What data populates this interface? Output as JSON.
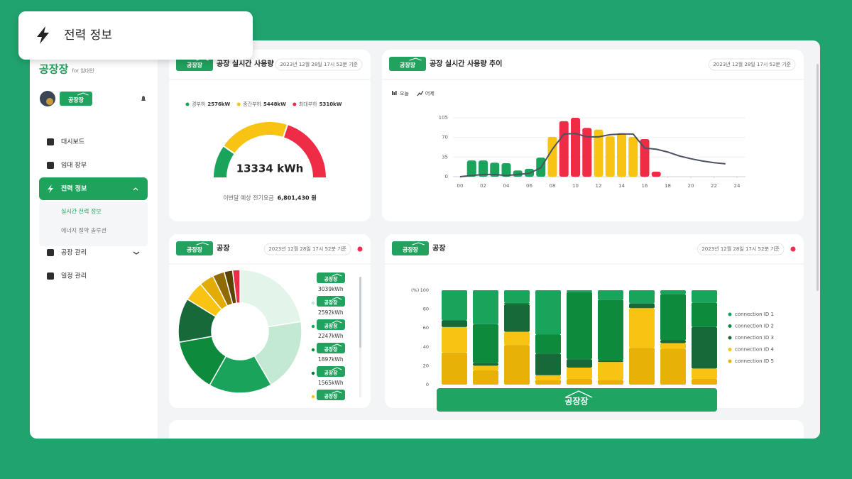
{
  "tooltip": {
    "title": "전력 정보"
  },
  "sidebar": {
    "logo": "공장장",
    "logo_sub": "for 임대인",
    "profile_badge": "공장장",
    "menu": [
      {
        "label": "대시보드"
      },
      {
        "label": "임대 장부"
      },
      {
        "label": "전력 정보",
        "active": true,
        "expanded": true,
        "children": [
          {
            "label": "실시간 전력 정보",
            "active": true
          },
          {
            "label": "에너지 절약 솔루션"
          }
        ]
      },
      {
        "label": "공장 관리",
        "expanded": false
      },
      {
        "label": "일정 관리"
      }
    ]
  },
  "chart_data": [
    {
      "type": "gauge",
      "badge": "공장장",
      "title": "공장 실시간 사용량",
      "timestamp": "2023년 12월 28일 17시 52분 기준",
      "categories": [
        "경부하",
        "중간부하",
        "최대부하"
      ],
      "values": [
        2576,
        5448,
        5310
      ],
      "value_labels": [
        "2576kW",
        "5448kW",
        "5310kW"
      ],
      "colors": [
        "#1aa35a",
        "#f7c414",
        "#ef2c45"
      ],
      "center_label": "13334 kWh",
      "footer_label": "이번달 예상 전기요금",
      "footer_value": "6,801,430 원"
    },
    {
      "type": "bar-line",
      "badge": "공장장",
      "title": "공장 실시간 사용량 추이",
      "timestamp": "2023년 12월 28일 17시 52분 기준",
      "series": [
        {
          "name": "오늘",
          "type": "bar",
          "x": [
            1,
            2,
            3,
            4,
            5,
            6,
            7,
            8,
            9,
            10,
            11,
            12,
            13,
            14,
            15,
            16,
            17
          ],
          "values": [
            29,
            29,
            25,
            24,
            11,
            14,
            34,
            71,
            99,
            105,
            87,
            84,
            72,
            78,
            71,
            67,
            9
          ],
          "colors": [
            "#1aa35a",
            "#1aa35a",
            "#1aa35a",
            "#1aa35a",
            "#1aa35a",
            "#1aa35a",
            "#1aa35a",
            "#f7c414",
            "#ef2c45",
            "#ef2c45",
            "#ef2c45",
            "#f7c414",
            "#f7c414",
            "#f7c414",
            "#f7c414",
            "#ef2c45",
            "#ef2c45"
          ]
        },
        {
          "name": "어제",
          "type": "line",
          "color": "#4b5260",
          "x": [
            0,
            1,
            2,
            3,
            4,
            5,
            6,
            7,
            8,
            9,
            10,
            11,
            12,
            13,
            14,
            15,
            16,
            17,
            18,
            19,
            20,
            21,
            22,
            23
          ],
          "values": [
            0,
            2,
            4,
            4,
            2,
            4,
            6,
            16,
            49,
            76,
            77,
            71,
            71,
            75,
            76,
            76,
            51,
            49,
            44,
            37,
            32,
            28,
            25,
            23
          ]
        }
      ],
      "xlim": [
        0,
        24
      ],
      "xticks": [
        {
          "value": 0,
          "label": "00"
        },
        {
          "value": 2,
          "label": "02"
        },
        {
          "value": 4,
          "label": "04"
        },
        {
          "value": 6,
          "label": "06"
        },
        {
          "value": 8,
          "label": "08"
        },
        10,
        12,
        14,
        16,
        18,
        20,
        22,
        24
      ],
      "ylim": [
        0,
        105
      ],
      "yticks": [
        0,
        35,
        70,
        105
      ],
      "grid": true
    },
    {
      "type": "donut",
      "badge": "공장장",
      "title": "공장",
      "timestamp": "2023년 12월 28일 17시 52분 기준",
      "status_color": "#ef2c55",
      "categories": [
        "공장장",
        "공장장",
        "공장장",
        "공장장",
        "공장장",
        "공장장",
        null,
        null,
        null,
        null
      ],
      "values": [
        3039,
        2592,
        2247,
        1897,
        1565,
        700,
        520,
        420,
        300,
        260
      ],
      "value_labels": [
        "3039kWh",
        "2592kWh",
        "2247kWh",
        "1897kWh",
        "1565kWh",
        null,
        null,
        null,
        null,
        null
      ],
      "colors": [
        "#e3f5ea",
        "#c3e9d2",
        "#1aa35a",
        "#0e8a3c",
        "#17693a",
        "#f7c414",
        "#e2ac06",
        "#8f6a05",
        "#5b4302",
        "#ef2c45"
      ]
    },
    {
      "type": "stacked-bar",
      "badge": "공장장",
      "title": "공장",
      "timestamp": "2023년 12월 28일 17시 52분 기준",
      "status_color": "#ef2c55",
      "ylabel": "(%)",
      "categories": [
        null,
        null,
        null,
        null,
        null,
        null,
        null,
        null,
        null
      ],
      "series": [
        {
          "name": "connection ID 1",
          "color": "#1aa35a",
          "values": [
            32,
            36,
            13,
            47,
            2,
            10,
            14,
            4,
            13
          ]
        },
        {
          "name": "connection ID 2",
          "color": "#0e8a3c",
          "values": [
            0,
            41,
            2,
            20,
            71,
            64,
            0,
            49,
            26
          ]
        },
        {
          "name": "connection ID 3",
          "color": "#17693a",
          "values": [
            7,
            3,
            29,
            23,
            9,
            2,
            5,
            3,
            44
          ]
        },
        {
          "name": "connection ID 4",
          "color": "#f7c414",
          "values": [
            27,
            5,
            14,
            5,
            12,
            19,
            42,
            6,
            11
          ]
        },
        {
          "name": "connection ID 5",
          "color": "#e8b108",
          "values": [
            34,
            15,
            42,
            5,
            6,
            5,
            39,
            38,
            6
          ]
        }
      ],
      "ylim": [
        0,
        100
      ],
      "yticks": [
        0,
        20,
        40,
        60,
        80,
        100
      ],
      "overlay_badge": "공장장"
    }
  ]
}
